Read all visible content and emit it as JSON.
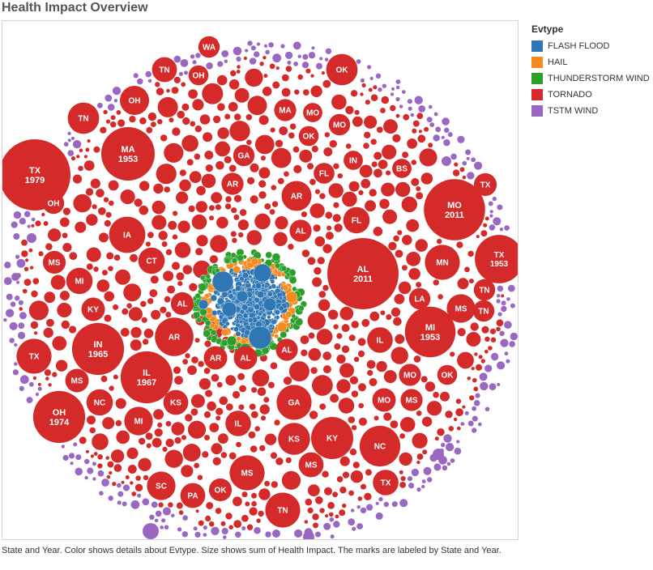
{
  "title": "Health Impact Overview",
  "legend": {
    "title": "Evtype",
    "items": [
      {
        "label": "FLASH FLOOD",
        "color": "#2f77b4"
      },
      {
        "label": "HAIL",
        "color": "#f58a1f"
      },
      {
        "label": "THUNDERSTORM WIND",
        "color": "#2aa02b"
      },
      {
        "label": "TORNADO",
        "color": "#d42a2a"
      },
      {
        "label": "TSTM WIND",
        "color": "#9a68c3"
      }
    ]
  },
  "caption": "State and Year.  Color shows details about Evtype.  Size shows sum of Health Impact.  The marks are labeled by State and Year.",
  "chart_data": {
    "type": "packed-bubble",
    "color_by": "Evtype",
    "size_by": "sum of Health Impact",
    "label_by": "State and Year",
    "labeled_marks": [
      {
        "state": "TX",
        "year": "1979",
        "evtype": "TORNADO",
        "size": 1.0
      },
      {
        "state": "AL",
        "year": "2011",
        "evtype": "TORNADO",
        "size": 1.0
      },
      {
        "state": "MO",
        "year": "2011",
        "evtype": "TORNADO",
        "size": 0.86
      },
      {
        "state": "TX",
        "year": "1953",
        "evtype": "TORNADO",
        "size": 0.68
      },
      {
        "state": "MA",
        "year": "1953",
        "evtype": "TORNADO",
        "size": 0.75
      },
      {
        "state": "IN",
        "year": "1965",
        "evtype": "TORNADO",
        "size": 0.73
      },
      {
        "state": "IL",
        "year": "1967",
        "evtype": "TORNADO",
        "size": 0.73
      },
      {
        "state": "MI",
        "year": "1953",
        "evtype": "TORNADO",
        "size": 0.71
      },
      {
        "state": "OH",
        "year": "1974",
        "evtype": "TORNADO",
        "size": 0.73
      },
      {
        "state": "TN",
        "year": "",
        "evtype": "TORNADO",
        "size": 0.44
      },
      {
        "state": "OH",
        "year": "",
        "evtype": "TORNADO",
        "size": 0.41
      },
      {
        "state": "WA",
        "year": "",
        "evtype": "TORNADO",
        "size": 0.3
      },
      {
        "state": "OK",
        "year": "",
        "evtype": "TORNADO",
        "size": 0.44
      },
      {
        "state": "TN",
        "year": "",
        "evtype": "TORNADO",
        "size": 0.35
      },
      {
        "state": "OH",
        "year": "",
        "evtype": "TORNADO",
        "size": 0.28
      },
      {
        "state": "MA",
        "year": "",
        "evtype": "TORNADO",
        "size": 0.31
      },
      {
        "state": "MO",
        "year": "",
        "evtype": "TORNADO",
        "size": 0.27
      },
      {
        "state": "MO",
        "year": "",
        "evtype": "TORNADO",
        "size": 0.3
      },
      {
        "state": "OK",
        "year": "",
        "evtype": "TORNADO",
        "size": 0.28
      },
      {
        "state": "GA",
        "year": "",
        "evtype": "TORNADO",
        "size": 0.3
      },
      {
        "state": "FL",
        "year": "",
        "evtype": "TORNADO",
        "size": 0.29
      },
      {
        "state": "IN",
        "year": "",
        "evtype": "TORNADO",
        "size": 0.27
      },
      {
        "state": "BS",
        "year": "",
        "evtype": "TORNADO",
        "size": 0.27
      },
      {
        "state": "TX",
        "year": "",
        "evtype": "TORNADO",
        "size": 0.32
      },
      {
        "state": "AR",
        "year": "",
        "evtype": "TORNADO",
        "size": 0.31
      },
      {
        "state": "AR",
        "year": "",
        "evtype": "TORNADO",
        "size": 0.42
      },
      {
        "state": "OH",
        "year": "",
        "evtype": "TORNADO",
        "size": 0.3
      },
      {
        "state": "IA",
        "year": "",
        "evtype": "TORNADO",
        "size": 0.51
      },
      {
        "state": "FL",
        "year": "",
        "evtype": "TORNADO",
        "size": 0.37
      },
      {
        "state": "AL",
        "year": "",
        "evtype": "TORNADO",
        "size": 0.31
      },
      {
        "state": "MS",
        "year": "",
        "evtype": "TORNADO",
        "size": 0.32
      },
      {
        "state": "CT",
        "year": "",
        "evtype": "TORNADO",
        "size": 0.37
      },
      {
        "state": "MN",
        "year": "",
        "evtype": "TORNADO",
        "size": 0.49
      },
      {
        "state": "TN",
        "year": "",
        "evtype": "TORNADO",
        "size": 0.3
      },
      {
        "state": "MI",
        "year": "",
        "evtype": "TORNADO",
        "size": 0.37
      },
      {
        "state": "LA",
        "year": "",
        "evtype": "TORNADO",
        "size": 0.3
      },
      {
        "state": "MS",
        "year": "",
        "evtype": "TORNADO",
        "size": 0.4
      },
      {
        "state": "KY",
        "year": "",
        "evtype": "TORNADO",
        "size": 0.33
      },
      {
        "state": "AL",
        "year": "",
        "evtype": "TORNADO",
        "size": 0.32
      },
      {
        "state": "AR",
        "year": "",
        "evtype": "TORNADO",
        "size": 0.54
      },
      {
        "state": "TX",
        "year": "",
        "evtype": "TORNADO",
        "size": 0.49
      },
      {
        "state": "IL",
        "year": "",
        "evtype": "TORNADO",
        "size": 0.36
      },
      {
        "state": "AR",
        "year": "",
        "evtype": "TORNADO",
        "size": 0.33
      },
      {
        "state": "AL",
        "year": "",
        "evtype": "TORNADO",
        "size": 0.33
      },
      {
        "state": "AL",
        "year": "",
        "evtype": "TORNADO",
        "size": 0.31
      },
      {
        "state": "MS",
        "year": "",
        "evtype": "TORNADO",
        "size": 0.33
      },
      {
        "state": "MO",
        "year": "",
        "evtype": "TORNADO",
        "size": 0.31
      },
      {
        "state": "OK",
        "year": "",
        "evtype": "TORNADO",
        "size": 0.28
      },
      {
        "state": "NC",
        "year": "",
        "evtype": "TORNADO",
        "size": 0.37
      },
      {
        "state": "KS",
        "year": "",
        "evtype": "TORNADO",
        "size": 0.35
      },
      {
        "state": "GA",
        "year": "",
        "evtype": "TORNADO",
        "size": 0.49
      },
      {
        "state": "MO",
        "year": "",
        "evtype": "TORNADO",
        "size": 0.33
      },
      {
        "state": "MS",
        "year": "",
        "evtype": "TORNADO",
        "size": 0.31
      },
      {
        "state": "MI",
        "year": "",
        "evtype": "TORNADO",
        "size": 0.4
      },
      {
        "state": "IL",
        "year": "",
        "evtype": "TORNADO",
        "size": 0.36
      },
      {
        "state": "KS",
        "year": "",
        "evtype": "TORNADO",
        "size": 0.45
      },
      {
        "state": "KY",
        "year": "",
        "evtype": "TORNADO",
        "size": 0.59
      },
      {
        "state": "NC",
        "year": "",
        "evtype": "TORNADO",
        "size": 0.57
      },
      {
        "state": "MS",
        "year": "",
        "evtype": "TORNADO",
        "size": 0.49
      },
      {
        "state": "MS",
        "year": "",
        "evtype": "TORNADO",
        "size": 0.35
      },
      {
        "state": "SC",
        "year": "",
        "evtype": "TORNADO",
        "size": 0.4
      },
      {
        "state": "PA",
        "year": "",
        "evtype": "TORNADO",
        "size": 0.35
      },
      {
        "state": "OK",
        "year": "",
        "evtype": "TORNADO",
        "size": 0.32
      },
      {
        "state": "TN",
        "year": "",
        "evtype": "TORNADO",
        "size": 0.49
      },
      {
        "state": "TX",
        "year": "",
        "evtype": "TORNADO",
        "size": 0.36
      },
      {
        "state": "TN",
        "year": "",
        "evtype": "TORNADO",
        "size": 0.3
      }
    ],
    "background_colors": {
      "tornado": "#d42a2a",
      "tstm_wind": "#9a68c3",
      "thunderstorm_wind": "#2aa02b",
      "hail": "#f58a1f",
      "flash_flood": "#2f77b4"
    }
  }
}
